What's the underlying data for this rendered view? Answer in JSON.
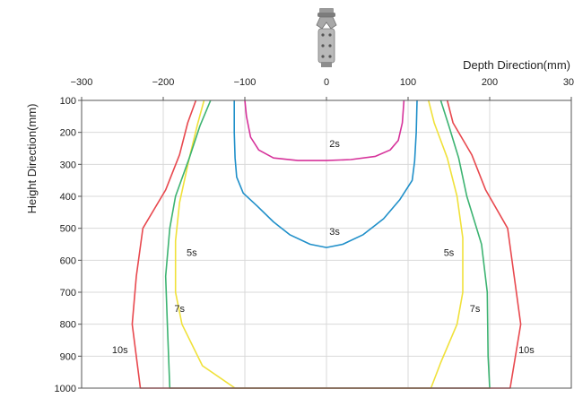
{
  "chart_data": {
    "type": "line",
    "title": "",
    "xlabel": "Depth Direction(mm)",
    "ylabel": "Height Direction(mm)",
    "xlim": [
      -300,
      300
    ],
    "ylim": [
      100,
      1000
    ],
    "y_inverted": true,
    "x_axis_position": "top",
    "grid": true,
    "x_ticks": [
      "−300",
      "−200",
      "−100",
      "0",
      "100",
      "200",
      "300"
    ],
    "y_ticks": [
      "100",
      "200",
      "300",
      "400",
      "500",
      "600",
      "700",
      "800",
      "900",
      "1000"
    ],
    "colors": {
      "2s": "#d6329a",
      "3s": "#1f8fc9",
      "5s": "#f0e13a",
      "7s": "#3cb371",
      "10s": "#e8484e"
    },
    "series": [
      {
        "name": "2s",
        "label_positions": [
          [
            10,
            235
          ]
        ],
        "x": [
          -100,
          -98,
          -93,
          -83,
          -65,
          -35,
          0,
          30,
          60,
          78,
          88,
          93,
          95
        ],
        "y": [
          100,
          150,
          215,
          255,
          280,
          288,
          288,
          285,
          275,
          255,
          225,
          170,
          100
        ]
      },
      {
        "name": "3s",
        "label_positions": [
          [
            10,
            510
          ]
        ],
        "x": [
          -113,
          -113,
          -112,
          -110,
          -102,
          -85,
          -65,
          -45,
          -20,
          0,
          20,
          45,
          70,
          90,
          105,
          108,
          110,
          111
        ],
        "y": [
          100,
          200,
          280,
          340,
          390,
          430,
          480,
          520,
          550,
          560,
          550,
          520,
          470,
          410,
          350,
          290,
          200,
          100
        ]
      },
      {
        "name": "5s",
        "label_positions": [
          [
            -165,
            575
          ],
          [
            150,
            575
          ]
        ],
        "x": [
          -150,
          -158,
          -168,
          -180,
          -185,
          -185,
          -177,
          -152,
          -112,
          128,
          140,
          160,
          167,
          167,
          160,
          148,
          132,
          125
        ],
        "y": [
          100,
          175,
          280,
          420,
          540,
          700,
          800,
          930,
          1000,
          1000,
          920,
          800,
          700,
          530,
          400,
          280,
          170,
          100
        ]
      },
      {
        "name": "7s",
        "label_positions": [
          [
            -180,
            750
          ],
          [
            182,
            750
          ]
        ],
        "x": [
          -142,
          -155,
          -168,
          -185,
          -192,
          -197,
          -195,
          -192,
          200,
          198,
          197,
          190,
          172,
          162,
          150,
          140
        ],
        "y": [
          100,
          180,
          280,
          400,
          500,
          650,
          800,
          1000,
          1000,
          900,
          700,
          550,
          400,
          280,
          180,
          100
        ]
      },
      {
        "name": "10s",
        "label_positions": [
          [
            -253,
            880
          ],
          [
            245,
            880
          ]
        ],
        "x": [
          -160,
          -170,
          -180,
          -197,
          -225,
          -233,
          -238,
          -228,
          225,
          238,
          230,
          222,
          195,
          178,
          155,
          148
        ],
        "y": [
          100,
          170,
          270,
          380,
          500,
          650,
          800,
          1000,
          1000,
          800,
          650,
          500,
          380,
          270,
          170,
          100
        ]
      }
    ]
  }
}
